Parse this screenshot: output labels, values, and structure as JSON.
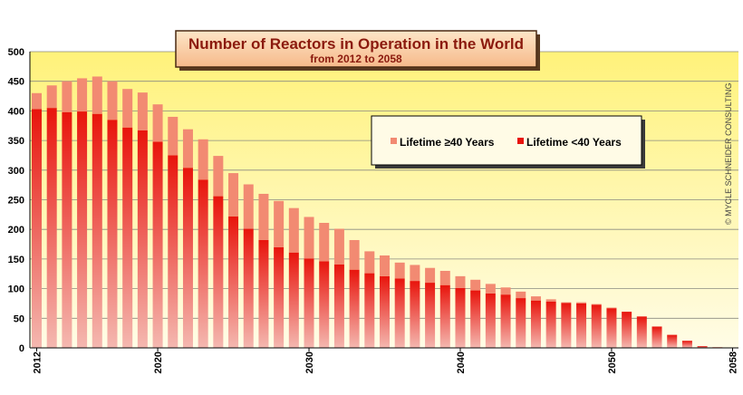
{
  "chart_data": {
    "type": "bar",
    "stacked": true,
    "title": "Number of Reactors in Operation in the World",
    "subtitle": "from 2012 to 2058",
    "credit": "© MYCLE SCHNEIDER CONSULTING",
    "x_start": 2012,
    "x_end": 2058,
    "x_ticks": [
      2012,
      2020,
      2030,
      2040,
      2050,
      2058
    ],
    "ylim": [
      0,
      500
    ],
    "y_ticks": [
      0,
      50,
      100,
      150,
      200,
      250,
      300,
      350,
      400,
      450,
      500
    ],
    "grid": true,
    "legend_position": "top-right",
    "years": [
      2012,
      2013,
      2014,
      2015,
      2016,
      2017,
      2018,
      2019,
      2020,
      2021,
      2022,
      2023,
      2024,
      2025,
      2026,
      2027,
      2028,
      2029,
      2030,
      2031,
      2032,
      2033,
      2034,
      2035,
      2036,
      2037,
      2038,
      2039,
      2040,
      2041,
      2042,
      2043,
      2044,
      2045,
      2046,
      2047,
      2048,
      2049,
      2050,
      2051,
      2052,
      2053,
      2054,
      2055,
      2056,
      2057
    ],
    "series": [
      {
        "name": "Lifetime <40 Years",
        "color": "#e8140c",
        "values": [
          403,
          405,
          398,
          399,
          395,
          385,
          372,
          367,
          348,
          325,
          304,
          284,
          256,
          222,
          201,
          182,
          170,
          161,
          151,
          146,
          141,
          132,
          126,
          121,
          117,
          113,
          110,
          106,
          101,
          97,
          92,
          90,
          84,
          80,
          78,
          76,
          75,
          73,
          67,
          61,
          53,
          36,
          22,
          12,
          3,
          1
        ]
      },
      {
        "name": "Lifetime ≥40 Years",
        "color": "#f28a72",
        "values": [
          27,
          38,
          52,
          56,
          63,
          65,
          65,
          64,
          63,
          65,
          65,
          68,
          68,
          73,
          75,
          78,
          78,
          75,
          70,
          65,
          60,
          50,
          37,
          35,
          27,
          27,
          25,
          24,
          20,
          18,
          16,
          12,
          11,
          7,
          4,
          1,
          2,
          1,
          1,
          0,
          0,
          0,
          0,
          0,
          0,
          0
        ]
      }
    ]
  }
}
